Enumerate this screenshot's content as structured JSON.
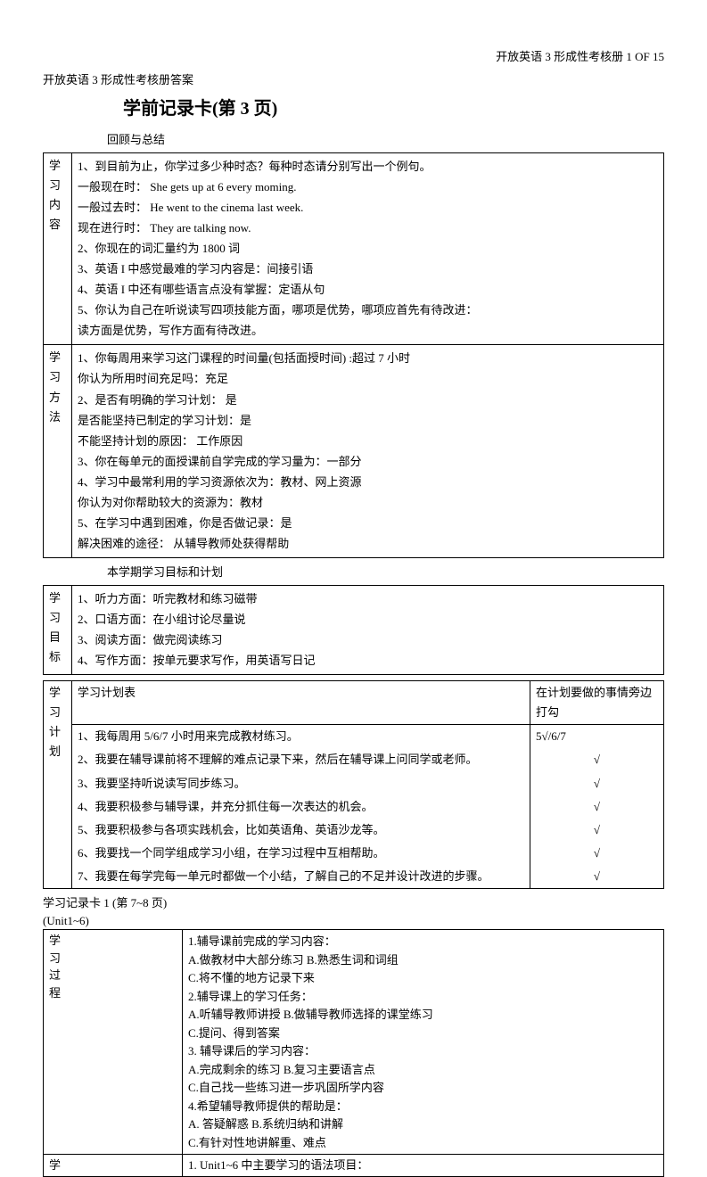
{
  "header": {
    "right": "开放英语 3 形成性考核册 1   OF   15",
    "left": "开放英语 3 形成性考核册答案"
  },
  "title": "学前记录卡(第 3 页)",
  "subtitle1": "回顾与总结",
  "section1": {
    "label": [
      "学",
      "习",
      "内",
      "容"
    ],
    "lines": [
      "1、到目前为止，你学过多少种时态？每种时态请分别写出一个例句。",
      "一般现在时：   She gets up at 6 every moming.",
      "一般过去时：   He went to the cinema last week.",
      "现在进行时：   They are talking now.",
      "2、你现在的词汇量约为 1800 词",
      "3、英语 I 中感觉最难的学习内容是：间接引语",
      "4、英语 I 中还有哪些语言点没有掌握：定语从句",
      "5、你认为自己在听说读写四项技能方面，哪项是优势，哪项应首先有待改进：",
      "读方面是优势，写作方面有待改进。"
    ]
  },
  "section2": {
    "label": [
      "学",
      "习",
      "方",
      "法"
    ],
    "lines": [
      "1、你每周用来学习这门课程的时间量(包括面授时间) :超过 7 小时",
      "你认为所用时间充足吗：充足",
      "2、是否有明确的学习计划：   是",
      "是否能坚持已制定的学习计划：是",
      "不能坚持计划的原因：   工作原因",
      "3、你在每单元的面授课前自学完成的学习量为：一部分",
      "4、学习中最常利用的学习资源依次为：教材、网上资源",
      "你认为对你帮助较大的资源为：教材",
      "5、在学习中遇到困难，你是否做记录：是",
      "解决困难的途径：   从辅导教师处获得帮助"
    ]
  },
  "subtitle2": "本学期学习目标和计划",
  "section3": {
    "label": [
      "学",
      "习",
      "目",
      "标"
    ],
    "lines": [
      "1、听力方面：听完教材和练习磁带",
      "2、口语方面：在小组讨论尽量说",
      "3、阅读方面：做完阅读练习",
      "4、写作方面：按单元要求写作，用英语写日记"
    ]
  },
  "section4": {
    "label": [
      "学",
      "习",
      "计",
      "划"
    ],
    "headerLeft": "学习计划表",
    "headerRight": "在计划要做的事情旁边打勾",
    "rows": [
      {
        "text": "1、我每周用 5/6/7 小时用来完成教材练习。",
        "check": "5√/6/7"
      },
      {
        "text": "2、我要在辅导课前将不理解的难点记录下来，然后在辅导课上问同学或老师。",
        "check": "√"
      },
      {
        "text": "3、我要坚持听说读写同步练习。",
        "check": "√"
      },
      {
        "text": "4、我要积极参与辅导课，并充分抓住每一次表达的机会。",
        "check": "√"
      },
      {
        "text": "5、我要积极参与各项实践机会，比如英语角、英语沙龙等。",
        "check": "√"
      },
      {
        "text": "6、我要找一个同学组成学习小组，在学习过程中互相帮助。",
        "check": "√"
      },
      {
        "text": "7、我要在每学完每一单元时都做一个小结，了解自己的不足并设计改进的步骤。",
        "check": "√"
      }
    ]
  },
  "section5": {
    "title1": "学习记录卡 1 (第 7~8 页)",
    "title2": "(Unit1~6)",
    "label": [
      "学",
      "习",
      "过",
      "程"
    ],
    "lines": [
      "1.辅导课前完成的学习内容：",
      "A.做教材中大部分练习        B.熟悉生词和词组",
      "C.将不懂的地方记录下来",
      "2.辅导课上的学习任务：",
      "A.听辅导教师讲授        B.做辅导教师选择的课堂练习",
      "C.提问、得到答案",
      "3. 辅导课后的学习内容：",
      "A.完成剩余的练习        B.复习主要语言点",
      "C.自己找一些练习进一步巩固所学内容",
      "4.希望辅导教师提供的帮助是：",
      "A. 答疑解惑        B.系统归纳和讲解",
      "C.有针对性地讲解重、难点"
    ],
    "bottomLabel": "学",
    "bottomText": "1. Unit1~6 中主要学习的语法项目："
  }
}
